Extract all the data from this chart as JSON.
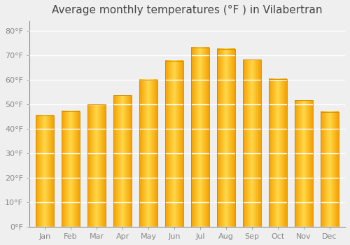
{
  "title": "Average monthly temperatures (°F ) in Vilabertran",
  "months": [
    "Jan",
    "Feb",
    "Mar",
    "Apr",
    "May",
    "Jun",
    "Jul",
    "Aug",
    "Sep",
    "Oct",
    "Nov",
    "Dec"
  ],
  "values": [
    45.5,
    47.3,
    50.0,
    53.6,
    60.1,
    67.8,
    73.2,
    72.7,
    68.2,
    60.3,
    51.6,
    47.0
  ],
  "bar_color_center": "#FFD84A",
  "bar_color_edge": "#F5A000",
  "yticks": [
    0,
    10,
    20,
    30,
    40,
    50,
    60,
    70,
    80
  ],
  "ylim": [
    0,
    84
  ],
  "background_color": "#efefef",
  "grid_color": "#ffffff",
  "title_fontsize": 11,
  "tick_fontsize": 8,
  "bar_width": 0.7
}
